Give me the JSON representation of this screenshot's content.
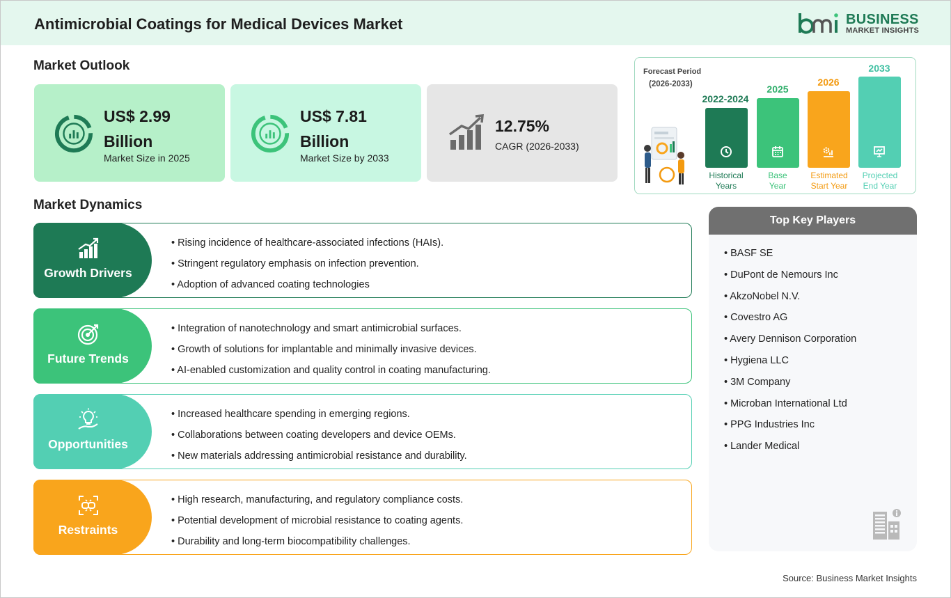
{
  "header": {
    "title": "Antimicrobial Coatings for Medical Devices Market",
    "logo_line1": "BUSINESS",
    "logo_line2": "MARKET INSIGHTS",
    "logo_mark_text": "bmi"
  },
  "outlook": {
    "title": "Market Outlook",
    "cards": [
      {
        "value": "US$ 2.99 Billion",
        "label": "Market Size in 2025",
        "bg": "#b6f0c9",
        "icon": "pie-chart-icon"
      },
      {
        "value": "US$ 7.81 Billion",
        "label": "Market Size by 2033",
        "bg": "#c8f7e2",
        "icon": "pie-chart-icon"
      },
      {
        "value": "12.75%",
        "label": "CAGR (2026-2033)",
        "bg": "#e6e6e6",
        "icon": "growth-bar-icon"
      }
    ]
  },
  "forecast": {
    "title": "Forecast Period",
    "period": "(2026-2033)",
    "bars": [
      {
        "year": "2022-2024",
        "label1": "Historical",
        "label2": "Years",
        "color": "#1e7a55",
        "text_color": "#1e7a55",
        "icon": "history-icon"
      },
      {
        "year": "2025",
        "label1": "Base",
        "label2": "Year",
        "color": "#3cc37a",
        "text_color": "#2fae6a",
        "icon": "calendar-icon"
      },
      {
        "year": "2026",
        "label1": "Estimated",
        "label2": "Start Year",
        "color": "#f9a51c",
        "text_color": "#f39a10",
        "icon": "gear-chart-icon"
      },
      {
        "year": "2033",
        "label1": "Projected",
        "label2": "End Year",
        "color": "#53cfb3",
        "text_color": "#3fc0a2",
        "icon": "presentation-icon"
      }
    ]
  },
  "dynamics": {
    "title": "Market Dynamics",
    "rows": [
      {
        "label": "Growth Drivers",
        "color": "#1e7a55",
        "icon": "growth-chart-icon",
        "items": [
          "• Rising incidence of healthcare-associated infections (HAIs).",
          "• Stringent regulatory emphasis on infection prevention.",
          "• Adoption of advanced coating technologies"
        ]
      },
      {
        "label": "Future Trends",
        "color": "#3cc37a",
        "icon": "target-icon",
        "items": [
          "• Integration of nanotechnology and smart antimicrobial surfaces.",
          "• Growth of solutions for implantable and minimally invasive devices.",
          "• AI-enabled customization and quality control in coating manufacturing."
        ]
      },
      {
        "label": "Opportunities",
        "color": "#53cfb3",
        "icon": "lightbulb-hand-icon",
        "items": [
          "• Increased healthcare spending in emerging regions.",
          "• Collaborations between coating developers and device OEMs.",
          "• New materials addressing antimicrobial resistance and durability."
        ]
      },
      {
        "label": "Restraints",
        "color": "#f9a51c",
        "icon": "broken-link-icon",
        "items": [
          "• High research, manufacturing, and regulatory compliance costs.",
          "• Potential development of microbial resistance to coating agents.",
          "• Durability and long-term biocompatibility challenges."
        ]
      }
    ]
  },
  "players": {
    "title": "Top Key Players",
    "items": [
      "• BASF SE",
      "• DuPont de Nemours Inc",
      "• AkzoNobel N.V.",
      "• Covestro AG",
      "• Avery Dennison Corporation",
      "• Hygiena LLC",
      "• 3M Company",
      "• Microban International Ltd",
      "• PPG Industries Inc",
      "• Lander Medical"
    ]
  },
  "source": "Source: Business Market Insights"
}
